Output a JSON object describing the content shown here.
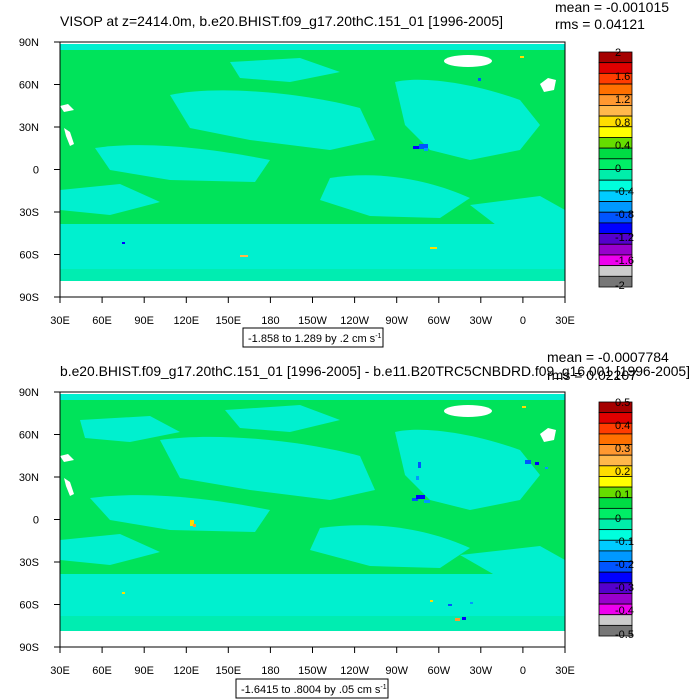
{
  "chart_data": [
    {
      "type": "heatmap",
      "title": "VISOP at z=2414.0m, b.e20.BHIST.f09_g17.20thC.151_01 [1996-2005]",
      "stats": {
        "mean": "mean = -0.001015",
        "rms": "rms = 0.04121"
      },
      "x_ticks": [
        "30E",
        "60E",
        "90E",
        "120E",
        "150E",
        "180",
        "150W",
        "120W",
        "90W",
        "60W",
        "30W",
        "0",
        "30E"
      ],
      "y_ticks": [
        "90N",
        "60N",
        "30N",
        "0",
        "30S",
        "60S",
        "90S"
      ],
      "xlim": [
        30,
        390
      ],
      "ylim": [
        -90,
        90
      ],
      "colorbar": {
        "labels": [
          "2",
          "1.6",
          "1.2",
          "0.8",
          "0.4",
          "0",
          "-0.4",
          "-0.8",
          "-1.2",
          "-1.6",
          "-2"
        ],
        "colors": [
          "#a50000",
          "#e00000",
          "#ff3c00",
          "#ff7000",
          "#ff9830",
          "#ffb84c",
          "#ffdd00",
          "#ffff00",
          "#66dd00",
          "#00dd44",
          "#00ee66",
          "#00eeaa",
          "#00ffdd",
          "#00ccff",
          "#0099ff",
          "#0055ff",
          "#0000ff",
          "#5500cc",
          "#9900cc",
          "#ee00ee",
          "#cccccc",
          "#777777"
        ]
      },
      "range_label": "-1.858 to 1.289 by .2 cm s",
      "range_unit_exp": "-1"
    },
    {
      "type": "heatmap",
      "title": "b.e20.BHIST.f09_g17.20thC.151_01 [1996-2005] - b.e11.B20TRC5CNBDRD.f09_g16.001 [1996-2005]",
      "stats": {
        "mean": "mean = -0.0007784",
        "rms": "rms = 0.02207"
      },
      "x_ticks": [
        "30E",
        "60E",
        "90E",
        "120E",
        "150E",
        "180",
        "150W",
        "120W",
        "90W",
        "60W",
        "30W",
        "0",
        "30E"
      ],
      "y_ticks": [
        "90N",
        "60N",
        "30N",
        "0",
        "30S",
        "60S",
        "90S"
      ],
      "xlim": [
        30,
        390
      ],
      "ylim": [
        -90,
        90
      ],
      "colorbar": {
        "labels": [
          "0.5",
          "0.4",
          "0.3",
          "0.2",
          "0.1",
          "0",
          "-0.1",
          "-0.2",
          "-0.3",
          "-0.4",
          "-0.5"
        ],
        "colors": [
          "#a50000",
          "#e00000",
          "#ff3c00",
          "#ff7000",
          "#ff9830",
          "#ffb84c",
          "#ffdd00",
          "#ffff00",
          "#66dd00",
          "#00dd44",
          "#00ee66",
          "#00eeaa",
          "#00ffdd",
          "#00ccff",
          "#0099ff",
          "#0055ff",
          "#0000ff",
          "#5500cc",
          "#9900cc",
          "#ee00ee",
          "#cccccc",
          "#777777"
        ]
      },
      "range_label": "-1.6415 to .8004 by .05 cm s",
      "range_unit_exp": "-1"
    }
  ]
}
